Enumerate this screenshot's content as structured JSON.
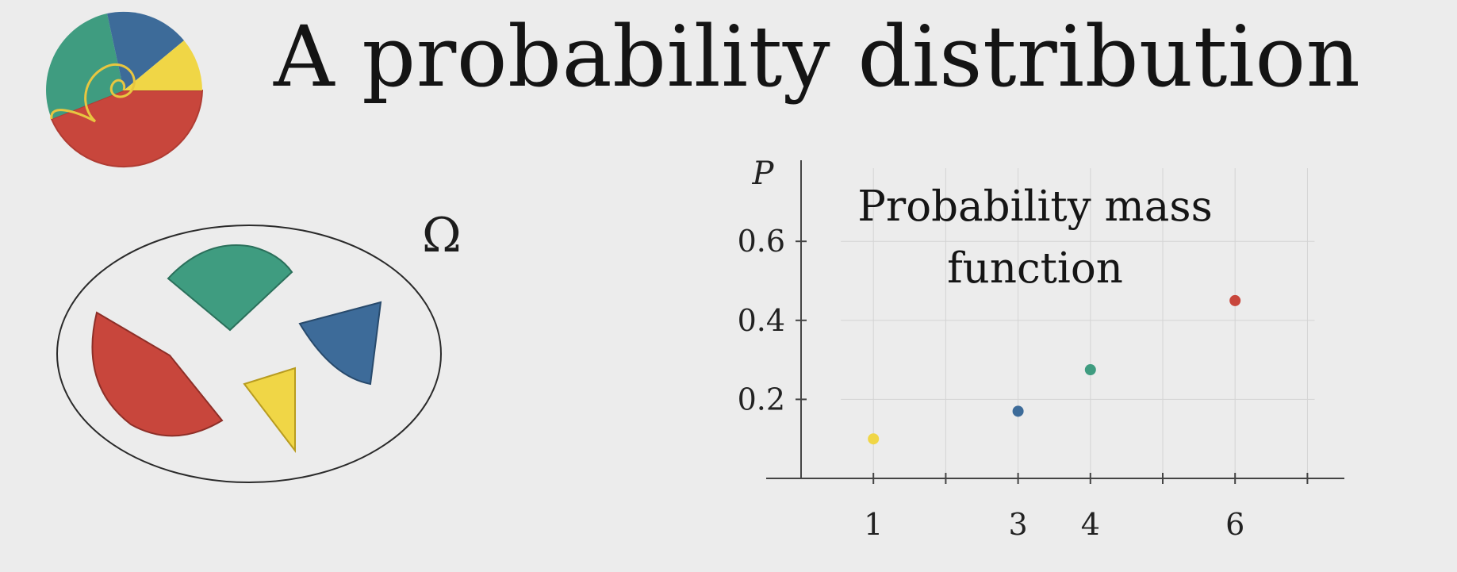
{
  "title": "A probability distribution",
  "sample_space_label": "Ω",
  "colors": {
    "yellow": "#f0d646",
    "blue": "#3d6b99",
    "green": "#3f9c80",
    "red": "#c8463c",
    "axis": "#444444",
    "grid": "#d4d4d4"
  },
  "chart_data": {
    "type": "scatter",
    "title": "Probability mass function",
    "ylabel": "P",
    "xlabel": "",
    "xlim": [
      0,
      7.5
    ],
    "ylim": [
      -0.02,
      0.8
    ],
    "x_ticks": [
      1,
      2,
      3,
      4,
      5,
      6,
      7
    ],
    "x_tick_labels": [
      "1",
      "",
      "3",
      "4",
      "",
      "6",
      ""
    ],
    "y_ticks": [
      0.2,
      0.4,
      0.6
    ],
    "y_tick_labels": [
      "0.2",
      "0.4",
      "0.6"
    ],
    "grid": true,
    "points": [
      {
        "x": 1,
        "y": 0.1,
        "color": "#f0d646"
      },
      {
        "x": 3,
        "y": 0.17,
        "color": "#3d6b99"
      },
      {
        "x": 4,
        "y": 0.275,
        "color": "#3f9c80"
      },
      {
        "x": 6,
        "y": 0.45,
        "color": "#c8463c"
      }
    ]
  }
}
